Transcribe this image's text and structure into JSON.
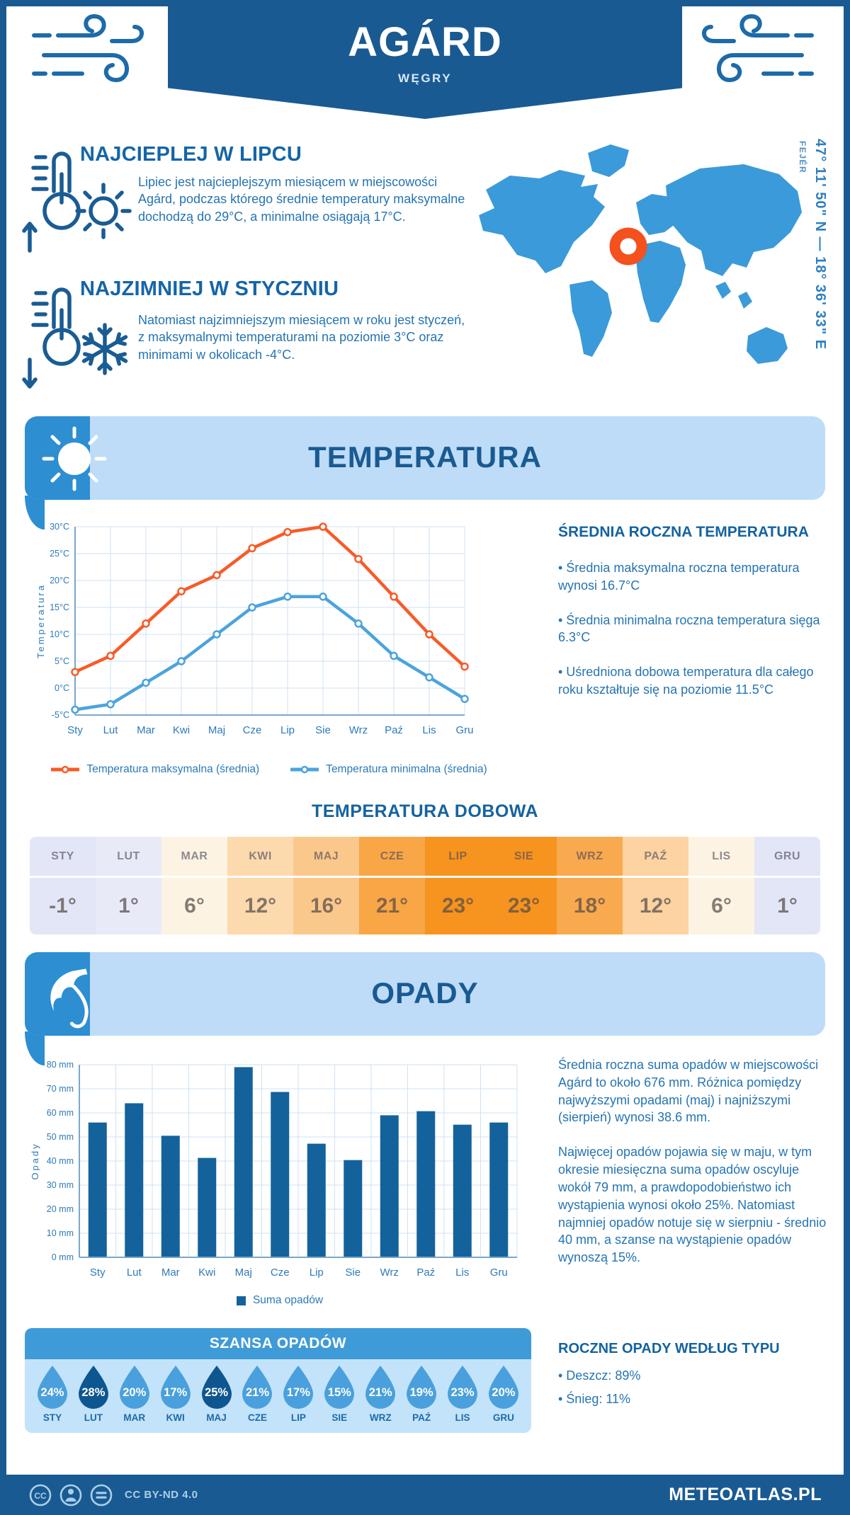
{
  "header": {
    "title": "AGÁRD",
    "subtitle": "WĘGRY"
  },
  "location": {
    "coordinates": "47° 11' 50\" N — 18° 36' 33\" E",
    "region": "FEJÉR"
  },
  "highlights": {
    "warm": {
      "title": "NAJCIEPLEJ W LIPCU",
      "text": "Lipiec jest najcieplejszym miesiącem w miejscowości Agárd, podczas którego średnie temperatury maksymalne dochodzą do 29°C, a minimalne osiągają 17°C."
    },
    "cold": {
      "title": "NAJZIMNIEJ W STYCZNIU",
      "text": "Natomiast najzimniejszym miesiącem w roku jest styczeń, z maksymalnymi temperaturami na poziomie 3°C oraz minimami w okolicach -4°C."
    }
  },
  "temperature": {
    "banner": "TEMPERATURA",
    "annual_title": "ŚREDNIA ROCZNA TEMPERATURA",
    "bullets": [
      "• Średnia maksymalna roczna temperatura wynosi 16.7°C",
      "• Średnia minimalna roczna temperatura sięga 6.3°C",
      "• Uśredniona dobowa temperatura dla całego roku kształtuje się na poziomie 11.5°C"
    ],
    "daily_title": "TEMPERATURA DOBOWA",
    "daily": {
      "months": [
        "STY",
        "LUT",
        "MAR",
        "KWI",
        "MAJ",
        "CZE",
        "LIP",
        "SIE",
        "WRZ",
        "PAŹ",
        "LIS",
        "GRU"
      ],
      "values": [
        "-1°",
        "1°",
        "6°",
        "12°",
        "16°",
        "21°",
        "23°",
        "23°",
        "18°",
        "12°",
        "6°",
        "1°"
      ],
      "colors": [
        "#e3e6f6",
        "#e8eaf8",
        "#fdf3e2",
        "#fdd9ae",
        "#fbc88b",
        "#f9a647",
        "#f7931f",
        "#f7931f",
        "#f9a94e",
        "#fcd3a1",
        "#fdf3e2",
        "#e3e6f6"
      ]
    }
  },
  "precipitation": {
    "banner": "OPADY",
    "paragraphs": [
      "Średnia roczna suma opadów w miejscowości Agárd to około 676 mm. Różnica pomiędzy najwyższymi opadami (maj) i najniższymi (sierpień) wynosi 38.6 mm.",
      "Najwięcej opadów pojawia się w maju, w tym okresie miesięczna suma opadów oscyluje wokół 79 mm, a prawdopodobieństwo ich wystąpienia wynosi około 25%. Natomiast najmniej opadów notuje się w sierpniu - średnio 40 mm, a szanse na wystąpienie opadów wynoszą 15%."
    ],
    "chance": {
      "title": "SZANSA OPADÓW",
      "months": [
        "STY",
        "LUT",
        "MAR",
        "KWI",
        "MAJ",
        "CZE",
        "LIP",
        "SIE",
        "WRZ",
        "PAŹ",
        "LIS",
        "GRU"
      ],
      "values": [
        "24%",
        "28%",
        "20%",
        "17%",
        "25%",
        "21%",
        "17%",
        "15%",
        "21%",
        "19%",
        "23%",
        "20%"
      ],
      "dark_indices": [
        1,
        4
      ],
      "drop_color": "#4aa0dc",
      "drop_color_dark": "#0e568f"
    },
    "by_type": {
      "title": "ROCZNE OPADY WEDŁUG TYPU",
      "items": [
        "• Deszcz: 89%",
        "• Śnieg: 11%"
      ]
    }
  },
  "chart_data": [
    {
      "type": "line",
      "x": [
        "Sty",
        "Lut",
        "Mar",
        "Kwi",
        "Maj",
        "Cze",
        "Lip",
        "Sie",
        "Wrz",
        "Paź",
        "Lis",
        "Gru"
      ],
      "series": [
        {
          "name": "Temperatura maksymalna (średnia)",
          "color": "#f75b28",
          "values": [
            3,
            6,
            12,
            18,
            21,
            26,
            29,
            30,
            24,
            17,
            10,
            4
          ]
        },
        {
          "name": "Temperatura minimalna (średnia)",
          "color": "#4ba3dd",
          "values": [
            -4,
            -3,
            1,
            5,
            10,
            15,
            17,
            17,
            12,
            6,
            2,
            -2
          ]
        }
      ],
      "ylabel": "Temperatura",
      "ylim": [
        -5,
        30
      ],
      "ytick_step": 5,
      "ytick_suffix": "°C",
      "grid": true,
      "legend_position": "bottom"
    },
    {
      "type": "bar",
      "categories": [
        "Sty",
        "Lut",
        "Mar",
        "Kwi",
        "Maj",
        "Cze",
        "Lip",
        "Sie",
        "Wrz",
        "Paź",
        "Lis",
        "Gru"
      ],
      "values": [
        56,
        64,
        50.5,
        41.3,
        79,
        68.7,
        47.2,
        40.4,
        59,
        60.7,
        55.1,
        56
      ],
      "ylabel": "Opady",
      "ylim": [
        0,
        80
      ],
      "ytick_step": 10,
      "ytick_suffix": " mm",
      "bar_color": "#14629b",
      "legend": "Suma opadów",
      "grid": true
    }
  ],
  "footer": {
    "license": "CC BY-ND 4.0",
    "brand": "METEOATLAS.PL"
  },
  "colors": {
    "brand_dark": "#1a5a92",
    "banner_light": "#bedcf7",
    "banner_corner": "#2d8ed2",
    "map_blue": "#3b9ad9",
    "marker_orange": "#f4511e",
    "chart_label": "#2d7ab8"
  }
}
